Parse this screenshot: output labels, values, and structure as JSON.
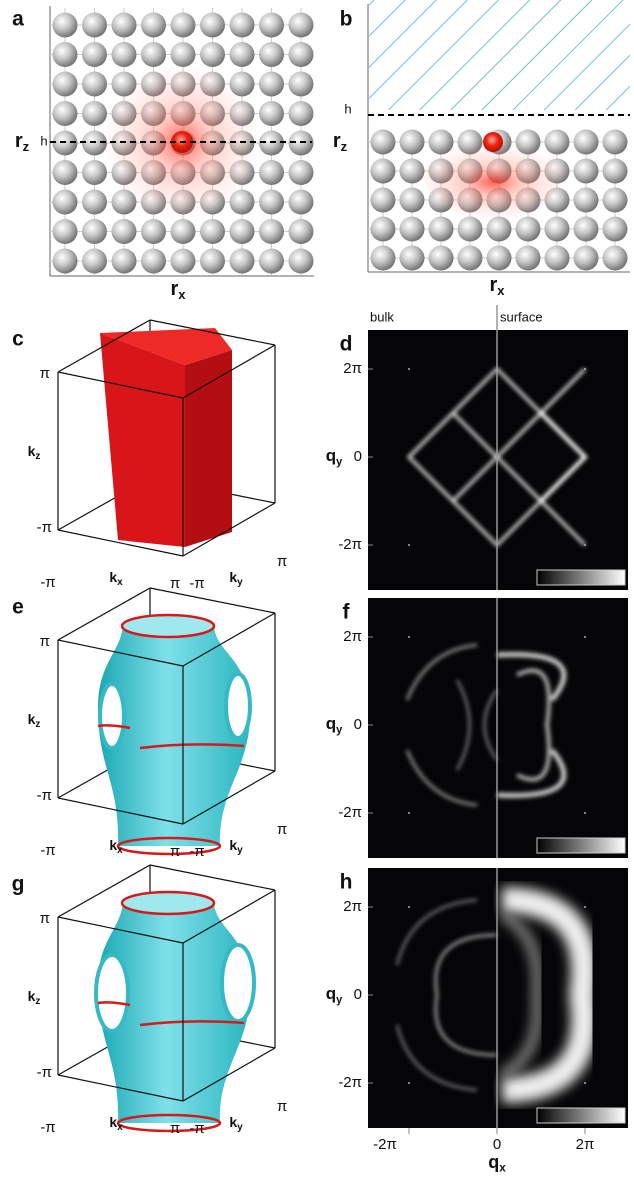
{
  "figure": {
    "panel_a": {
      "label": "a",
      "h": "h",
      "rz": {
        "base": "r",
        "sub": "z"
      },
      "rx": {
        "base": "r",
        "sub": "x"
      }
    },
    "panel_b": {
      "label": "b",
      "h": "h",
      "rz": {
        "base": "r",
        "sub": "z"
      },
      "rx": {
        "base": "r",
        "sub": "x"
      }
    },
    "panel_c": {
      "label": "c",
      "kz": {
        "base": "k",
        "sub": "z"
      },
      "kx": {
        "base": "k",
        "sub": "x"
      },
      "ky": {
        "base": "k",
        "sub": "y"
      },
      "ticks": {
        "z_top": "π",
        "z_bottom": "-π",
        "x_start": "-π",
        "x_end": "π",
        "y_start": "-π",
        "y_end": "π"
      }
    },
    "panel_e": {
      "label": "e",
      "kz": {
        "base": "k",
        "sub": "z"
      },
      "kx": {
        "base": "k",
        "sub": "x"
      },
      "ky": {
        "base": "k",
        "sub": "y"
      },
      "ticks": {
        "z_top": "π",
        "z_bottom": "-π",
        "x_start": "-π",
        "x_end": "π",
        "y_start": "-π",
        "y_end": "π"
      }
    },
    "panel_g": {
      "label": "g",
      "kz": {
        "base": "k",
        "sub": "z"
      },
      "kx": {
        "base": "k",
        "sub": "x"
      },
      "ky": {
        "base": "k",
        "sub": "y"
      },
      "ticks": {
        "z_top": "π",
        "z_bottom": "-π",
        "x_start": "-π",
        "x_end": "π",
        "y_start": "-π",
        "y_end": "π"
      }
    },
    "panel_d": {
      "label": "d",
      "bulk": "bulk",
      "surface": "surface",
      "qy": {
        "base": "q",
        "sub": "y"
      },
      "yticks": [
        "2π",
        "0",
        "-2π"
      ]
    },
    "panel_f": {
      "label": "f",
      "qy": {
        "base": "q",
        "sub": "y"
      },
      "yticks": [
        "2π",
        "0",
        "-2π"
      ]
    },
    "panel_h": {
      "label": "h",
      "qy": {
        "base": "q",
        "sub": "y"
      },
      "yticks": [
        "2π",
        "0",
        "-2π"
      ]
    },
    "qx_axis": {
      "qx": {
        "base": "q",
        "sub": "x"
      },
      "ticks": [
        "-2π",
        "0",
        "2π"
      ]
    }
  }
}
